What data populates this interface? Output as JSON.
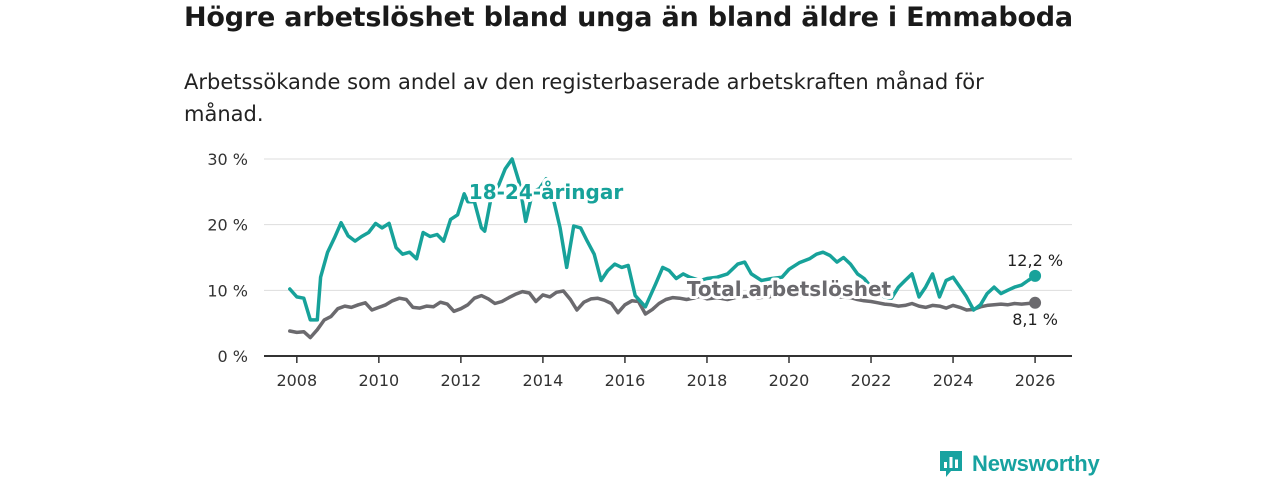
{
  "header": {
    "title": "Högre arbetslöshet bland unga än bland äldre i Emmaboda",
    "subtitle": "Arbetssökande som andel av den registerbaserade arbetskraften månad för månad."
  },
  "brand": {
    "name": "Newsworthy"
  },
  "colors": {
    "youth": "#17a29a",
    "total": "#6b6a6e",
    "grid": "#dddddd",
    "axis": "#333333"
  },
  "chart_data": {
    "type": "line",
    "title": "Högre arbetslöshet bland unga än bland äldre i Emmaboda",
    "subtitle": "Arbetssökande som andel av den registerbaserade arbetskraften månad för månad.",
    "xlabel": "",
    "ylabel": "",
    "xlim": [
      2007.2,
      2026.9
    ],
    "ylim": [
      0,
      30
    ],
    "grid": true,
    "x_ticks": [
      2008,
      2010,
      2012,
      2014,
      2016,
      2018,
      2020,
      2022,
      2024,
      2026
    ],
    "x_tick_labels": [
      "2008",
      "2010",
      "2012",
      "2014",
      "2016",
      "2018",
      "2020",
      "2022",
      "2024",
      "2026"
    ],
    "y_ticks": [
      0,
      10,
      20,
      30
    ],
    "y_tick_labels": [
      "0 %",
      "10 %",
      "20 %",
      "30 %"
    ],
    "series": [
      {
        "name": "18-24-åringar",
        "label": "18-24-åringar",
        "end_label": "12,2 %",
        "x": [
          2007.83,
          2008.0,
          2008.17,
          2008.33,
          2008.5,
          2008.58,
          2008.75,
          2008.92,
          2009.08,
          2009.25,
          2009.42,
          2009.58,
          2009.75,
          2009.92,
          2010.08,
          2010.25,
          2010.42,
          2010.58,
          2010.75,
          2010.92,
          2011.08,
          2011.25,
          2011.42,
          2011.58,
          2011.75,
          2011.92,
          2012.08,
          2012.17,
          2012.33,
          2012.5,
          2012.58,
          2012.75,
          2012.92,
          2013.08,
          2013.25,
          2013.42,
          2013.58,
          2013.75,
          2013.92,
          2014.08,
          2014.25,
          2014.42,
          2014.58,
          2014.75,
          2014.92,
          2015.08,
          2015.25,
          2015.42,
          2015.58,
          2015.75,
          2015.92,
          2016.08,
          2016.25,
          2016.5,
          2016.75,
          2016.92,
          2017.08,
          2017.25,
          2017.42,
          2017.58,
          2017.83,
          2018.0,
          2018.25,
          2018.5,
          2018.75,
          2018.92,
          2019.08,
          2019.33,
          2019.58,
          2019.83,
          2020.0,
          2020.25,
          2020.5,
          2020.67,
          2020.83,
          2021.0,
          2021.17,
          2021.33,
          2021.5,
          2021.67,
          2021.83,
          2022.0,
          2022.17,
          2022.33,
          2022.5,
          2022.67,
          2022.83,
          2023.0,
          2023.17,
          2023.33,
          2023.5,
          2023.67,
          2023.83,
          2024.0,
          2024.17,
          2024.33,
          2024.5,
          2024.67,
          2024.83,
          2025.0,
          2025.17,
          2025.33,
          2025.5,
          2025.67,
          2025.83,
          2026.0
        ],
        "values": [
          10.2,
          9.0,
          8.8,
          5.5,
          5.5,
          12.0,
          15.8,
          18.0,
          20.3,
          18.3,
          17.5,
          18.2,
          18.8,
          20.2,
          19.5,
          20.2,
          16.5,
          15.5,
          15.8,
          14.8,
          18.8,
          18.2,
          18.5,
          17.5,
          20.8,
          21.5,
          24.7,
          23.5,
          23.5,
          19.5,
          19.0,
          24.5,
          26.0,
          28.5,
          30.0,
          26.5,
          20.5,
          25.0,
          25.5,
          27.0,
          24.0,
          19.5,
          13.5,
          19.8,
          19.5,
          17.5,
          15.5,
          11.5,
          13.0,
          14.0,
          13.5,
          13.8,
          9.2,
          7.5,
          11.0,
          13.5,
          13.0,
          11.8,
          12.5,
          12.0,
          11.5,
          11.8,
          12.0,
          12.5,
          14.0,
          14.3,
          12.5,
          11.5,
          11.8,
          12.0,
          13.2,
          14.2,
          14.8,
          15.5,
          15.8,
          15.3,
          14.3,
          15.0,
          14.0,
          12.5,
          11.8,
          10.5,
          9.5,
          9.0,
          8.8,
          10.5,
          11.5,
          12.5,
          9.0,
          10.5,
          12.5,
          9.0,
          11.5,
          12.0,
          10.5,
          9.0,
          7.0,
          7.8,
          9.5,
          10.5,
          9.5,
          10.0,
          10.5,
          10.8,
          11.5,
          12.2
        ]
      },
      {
        "name": "Total arbetslöshet",
        "label": "Total arbetslöshet",
        "end_label": "8,1 %",
        "x": [
          2007.83,
          2008.0,
          2008.17,
          2008.33,
          2008.5,
          2008.67,
          2008.83,
          2009.0,
          2009.17,
          2009.33,
          2009.5,
          2009.67,
          2009.83,
          2010.0,
          2010.17,
          2010.33,
          2010.5,
          2010.67,
          2010.83,
          2011.0,
          2011.17,
          2011.33,
          2011.5,
          2011.67,
          2011.83,
          2012.0,
          2012.17,
          2012.33,
          2012.5,
          2012.67,
          2012.83,
          2013.0,
          2013.17,
          2013.33,
          2013.5,
          2013.67,
          2013.83,
          2014.0,
          2014.17,
          2014.33,
          2014.5,
          2014.67,
          2014.83,
          2015.0,
          2015.17,
          2015.33,
          2015.5,
          2015.67,
          2015.83,
          2016.0,
          2016.17,
          2016.33,
          2016.5,
          2016.67,
          2016.83,
          2017.0,
          2017.17,
          2017.33,
          2017.5,
          2017.67,
          2017.83,
          2018.0,
          2018.25,
          2018.5,
          2018.75,
          2019.0,
          2019.25,
          2019.5,
          2019.75,
          2020.0,
          2020.25,
          2020.5,
          2020.75,
          2021.0,
          2021.25,
          2021.5,
          2021.67,
          2021.83,
          2022.0,
          2022.17,
          2022.33,
          2022.5,
          2022.67,
          2022.83,
          2023.0,
          2023.17,
          2023.33,
          2023.5,
          2023.67,
          2023.83,
          2024.0,
          2024.17,
          2024.33,
          2024.5,
          2024.67,
          2024.83,
          2025.0,
          2025.17,
          2025.33,
          2025.5,
          2025.67,
          2025.83,
          2026.0
        ],
        "values": [
          3.8,
          3.6,
          3.7,
          2.8,
          4.0,
          5.5,
          6.0,
          7.2,
          7.6,
          7.4,
          7.8,
          8.1,
          7.0,
          7.4,
          7.8,
          8.4,
          8.8,
          8.6,
          7.4,
          7.3,
          7.6,
          7.5,
          8.2,
          7.9,
          6.8,
          7.2,
          7.8,
          8.8,
          9.2,
          8.7,
          8.0,
          8.3,
          8.9,
          9.4,
          9.8,
          9.6,
          8.3,
          9.3,
          9.0,
          9.7,
          9.9,
          8.6,
          7.0,
          8.2,
          8.7,
          8.8,
          8.5,
          8.0,
          6.6,
          7.8,
          8.4,
          8.3,
          6.4,
          7.1,
          8.0,
          8.6,
          8.9,
          8.8,
          8.6,
          8.8,
          9.1,
          8.7,
          8.9,
          8.6,
          9.0,
          9.1,
          8.9,
          9.0,
          9.3,
          9.4,
          9.2,
          9.0,
          9.3,
          9.2,
          9.0,
          8.9,
          8.6,
          8.4,
          8.3,
          8.1,
          7.9,
          7.8,
          7.6,
          7.7,
          8.0,
          7.6,
          7.4,
          7.7,
          7.6,
          7.3,
          7.7,
          7.4,
          7.0,
          7.1,
          7.5,
          7.7,
          7.8,
          7.9,
          7.8,
          8.0,
          7.9,
          8.0,
          8.1
        ]
      }
    ]
  }
}
